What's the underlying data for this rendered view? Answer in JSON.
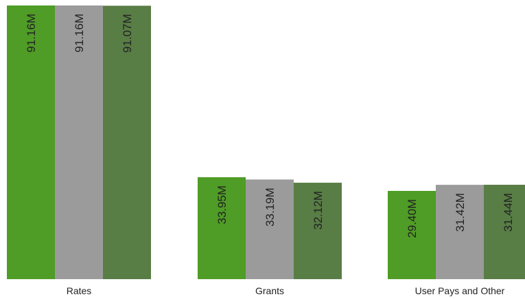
{
  "chart_data": {
    "type": "bar",
    "categories": [
      "Rates",
      "Grants",
      "User Pays and Other"
    ],
    "series": [
      {
        "color": "#4f9c26",
        "values": [
          91.16,
          33.95,
          29.4
        ],
        "labels": [
          "91.16M",
          "33.95M",
          "29.40M"
        ]
      },
      {
        "color": "#9b9b9b",
        "values": [
          91.16,
          33.19,
          31.42
        ],
        "labels": [
          "91.16M",
          "33.19M",
          "31.42M"
        ]
      },
      {
        "color": "#587d45",
        "values": [
          91.07,
          32.12,
          31.44
        ],
        "labels": [
          "91.07M",
          "32.12M",
          "31.44M"
        ]
      }
    ],
    "title": "",
    "xlabel": "",
    "ylabel": "",
    "ylim": [
      0,
      91.16
    ],
    "grid": false,
    "legend": "none",
    "data_label_orientation": "vertical"
  }
}
